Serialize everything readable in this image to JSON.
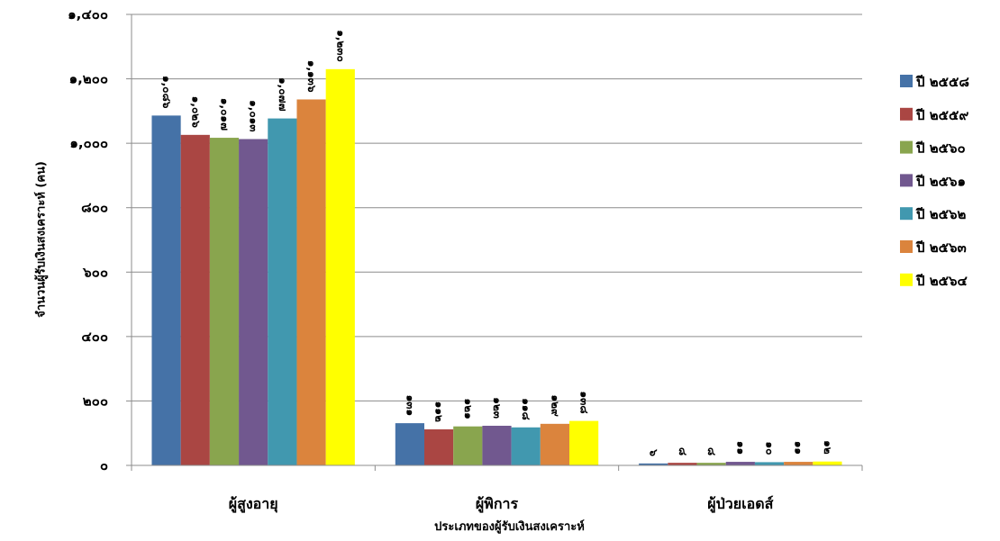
{
  "chart_data": {
    "type": "bar",
    "title": "",
    "xlabel": "ประเภทของผู้รับเงินสงเคราะห์",
    "ylabel": "จำนวนผู้รับเงินสงเคราะห์ (คน)",
    "ylim": [
      0,
      1400
    ],
    "yticks": [
      0,
      200,
      400,
      600,
      800,
      1000,
      1200,
      1400
    ],
    "ytick_labels": [
      "๐",
      "๒๐๐",
      "๔๐๐",
      "๖๐๐",
      "๘๐๐",
      "๑,๐๐๐",
      "๑,๒๐๐",
      "๑,๔๐๐"
    ],
    "grid": true,
    "legend_position": "right",
    "categories": [
      "ผู้สูงอายุ",
      "ผู้พิการ",
      "ผู้ป่วยเอดส์"
    ],
    "series": [
      {
        "name": "ปี ๒๕๕๘",
        "color": "#4572A7",
        "values": [
          1086,
          131,
          6
        ],
        "labels": [
          "๑,๐๘๖",
          "๑๓๑",
          "๖"
        ]
      },
      {
        "name": "ปี ๒๕๕๙",
        "color": "#AA4643",
        "values": [
          1026,
          112,
          8
        ],
        "labels": [
          "๑,๐๒๖",
          "๑๑๒",
          "๘"
        ]
      },
      {
        "name": "ปี ๒๕๖๐",
        "color": "#89A54E",
        "values": [
          1017,
          121,
          8
        ],
        "labels": [
          "๑,๐๑๗",
          "๑๒๑",
          "๘"
        ]
      },
      {
        "name": "ปี ๒๕๖๑",
        "color": "#71588F",
        "values": [
          1013,
          123,
          11
        ],
        "labels": [
          "๑,๐๑๓",
          "๑๒๓",
          "๑๑"
        ]
      },
      {
        "name": "ปี ๒๕๖๒",
        "color": "#4198AF",
        "values": [
          1077,
          118,
          10
        ],
        "labels": [
          "๑,๐๗๗",
          "๑๑๘",
          "๑๐"
        ]
      },
      {
        "name": "ปี ๒๕๖๓",
        "color": "#DB843D",
        "values": [
          1136,
          129,
          11
        ],
        "labels": [
          "๑,๑๓๖",
          "๑๒๙",
          "๑๑"
        ]
      },
      {
        "name": "ปี ๒๕๖๔",
        "color": "#FFFF00",
        "values": [
          1230,
          138,
          12
        ],
        "labels": [
          "๑,๒๓๐",
          "๑๓๘",
          "๑๒"
        ]
      }
    ]
  }
}
